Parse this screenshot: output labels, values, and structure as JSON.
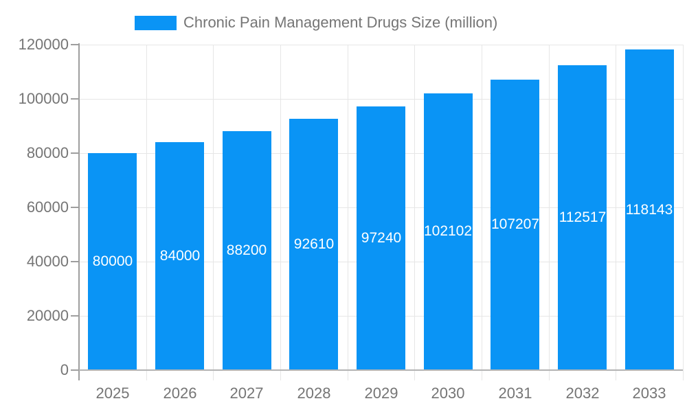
{
  "legend": {
    "label": "Chronic Pain Management Drugs Size (million)"
  },
  "chart_data": {
    "type": "bar",
    "title": "Chronic Pain Management Drugs Size (million)",
    "categories": [
      "2025",
      "2026",
      "2027",
      "2028",
      "2029",
      "2030",
      "2031",
      "2032",
      "2033"
    ],
    "values": [
      80000,
      84000,
      88200,
      92610,
      97240,
      102102,
      107207,
      112517,
      118143
    ],
    "series": [
      {
        "name": "Chronic Pain Management Drugs Size (million)",
        "values": [
          80000,
          84000,
          88200,
          92610,
          97240,
          102102,
          107207,
          112517,
          118143
        ]
      }
    ],
    "xlabel": "",
    "ylabel": "",
    "ylim": [
      0,
      120000
    ],
    "yticks": [
      0,
      20000,
      40000,
      60000,
      80000,
      100000,
      120000
    ],
    "grid": true,
    "legend_position": "top",
    "bar_labels_visible": true,
    "bar_label_position": "inside-center"
  },
  "colors": {
    "bar": "#0a94f5",
    "bar_label": "#ffffff",
    "axis_text": "#757575",
    "gridline": "#e6e6e6",
    "baseline": "#b3b3b3",
    "axis_line": "#9e9e9e",
    "background": "#ffffff"
  }
}
